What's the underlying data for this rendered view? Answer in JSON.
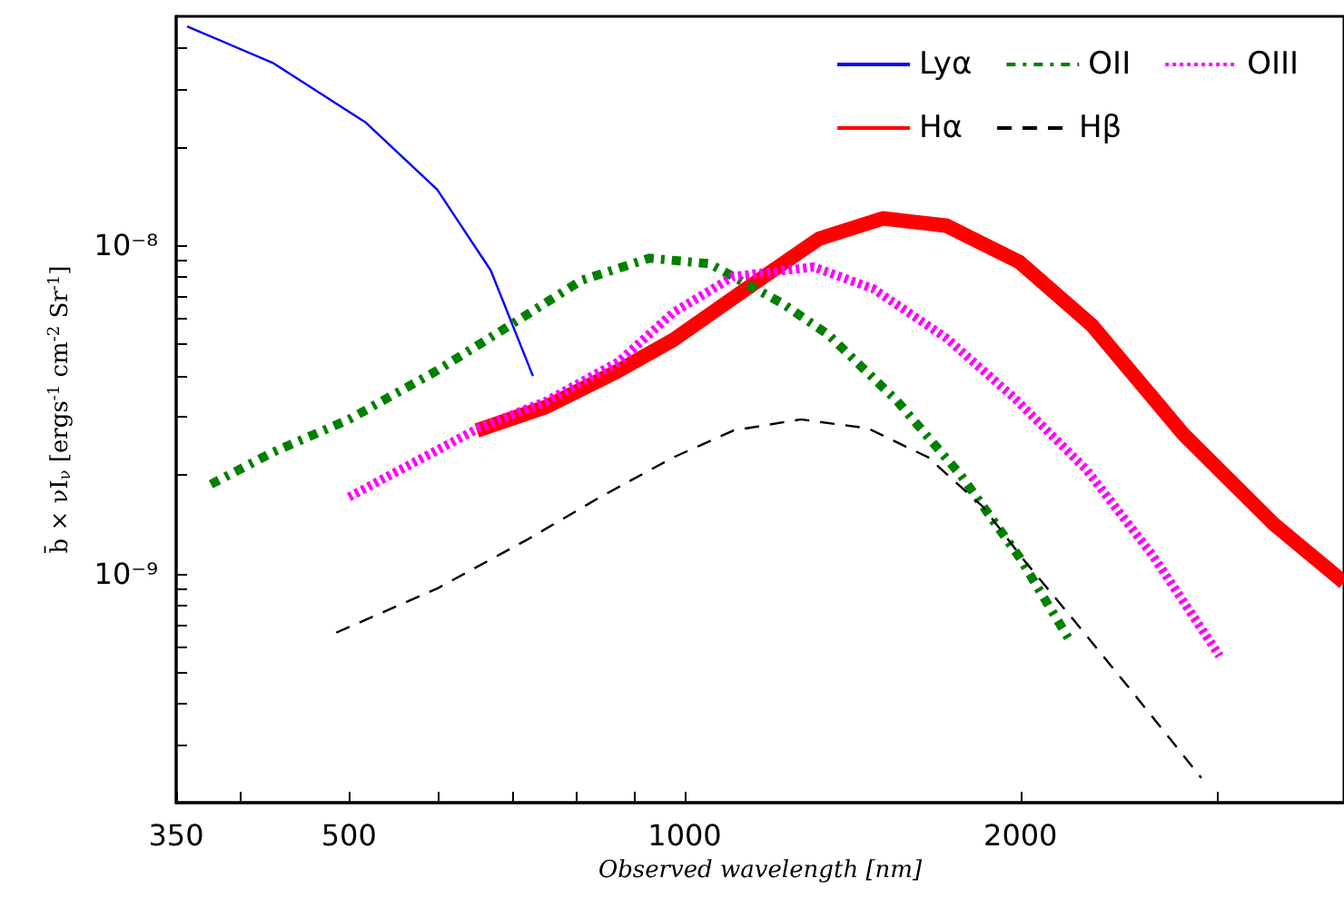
{
  "chart_data": {
    "type": "line",
    "xlabel": "Observed wavelength [nm]",
    "ylabel": "b̄ × νI$_{ν}$ [ergs$^{-1}$ cm$^{-2}$ Sr$^{-1}$]",
    "log": "xy",
    "xlim": [
      350,
      3900
    ],
    "ylim": [
      2e-10,
      5e-08
    ],
    "xticks": [
      350,
      {
        "value": 400,
        "label": null
      },
      500,
      {
        "value": 600,
        "label": null
      },
      {
        "value": 700,
        "label": null
      },
      {
        "value": 800,
        "label": null
      },
      {
        "value": 900,
        "label": null
      },
      1000,
      2000,
      {
        "value": 3000,
        "label": null
      }
    ],
    "yticks": [
      {
        "value": 3e-10,
        "label": null
      },
      {
        "value": 4e-10,
        "label": null
      },
      {
        "value": 5e-10,
        "label": null
      },
      {
        "value": 6e-10,
        "label": null
      },
      {
        "value": 7e-10,
        "label": null
      },
      {
        "value": 8e-10,
        "label": null
      },
      {
        "value": 9e-10,
        "label": null
      },
      {
        "value": 1e-09,
        "label": "10⁻⁹"
      },
      {
        "value": 2e-09,
        "label": null
      },
      {
        "value": 3e-09,
        "label": null
      },
      {
        "value": 4e-09,
        "label": null
      },
      {
        "value": 5e-09,
        "label": null
      },
      {
        "value": 6e-09,
        "label": null
      },
      {
        "value": 7e-09,
        "label": null
      },
      {
        "value": 8e-09,
        "label": null
      },
      {
        "value": 9e-09,
        "label": null
      },
      {
        "value": 1e-08,
        "label": "10⁻⁸"
      },
      {
        "value": 2e-08,
        "label": null
      },
      {
        "value": 3e-08,
        "label": null
      },
      {
        "value": 4e-08,
        "label": null
      }
    ],
    "grid": false,
    "legend": "top right",
    "marker": "none",
    "series": [
      {
        "name": "Lyα",
        "color": "#0000ff",
        "line_style": "solid",
        "x": [
          358,
          427,
          517,
          600,
          670,
          731
        ],
        "values": [
          4.66e-08,
          3.61e-08,
          2.38e-08,
          1.48e-08,
          8.4e-09,
          4e-09
        ]
      },
      {
        "name": "Hα",
        "color": "#ff0000",
        "line_style": "solid",
        "x": [
          651,
          751,
          873,
          977,
          1135,
          1320,
          1505,
          1716,
          1996,
          2319,
          2799,
          3377,
          3900
        ],
        "values": [
          2.73e-09,
          3.22e-09,
          4.16e-09,
          5.16e-09,
          7.37e-09,
          1.05e-08,
          1.21e-08,
          1.15e-08,
          8.9e-09,
          5.7e-09,
          2.66e-09,
          1.41e-09,
          9.4e-10
        ]
      },
      {
        "name": "OII",
        "color": "#008000",
        "line_style": "dashed",
        "x": [
          376,
          427,
          500,
          600,
          697,
          809,
          930,
          1053,
          1224,
          1344,
          1551,
          1769,
          1996,
          2217
        ],
        "values": [
          1.87e-09,
          2.34e-09,
          2.95e-09,
          4.16e-09,
          5.71e-09,
          7.85e-09,
          9.15e-09,
          8.8e-09,
          6.65e-09,
          5.36e-09,
          3.35e-09,
          1.99e-09,
          1.12e-09,
          6.2e-10
        ]
      },
      {
        "name": "Hβ",
        "color": "#000000",
        "line_style": "dashed",
        "x": [
          487,
          600,
          723,
          840,
          977,
          1106,
          1271,
          1460,
          1653,
          1850,
          2018,
          2233,
          2527,
          2905
        ],
        "values": [
          6.6e-10,
          9e-10,
          1.27e-09,
          1.71e-09,
          2.26e-09,
          2.73e-09,
          2.95e-09,
          2.77e-09,
          2.26e-09,
          1.6e-09,
          1.09e-09,
          7.2e-10,
          4.3e-10,
          2.38e-10
        ]
      },
      {
        "name": "OIII",
        "color": "#ff00ff",
        "line_style": "dotted",
        "x": [
          500,
          653,
          751,
          873,
          977,
          1106,
          1305,
          1477,
          1716,
          1973,
          2292,
          2625,
          3017
        ],
        "values": [
          1.71e-09,
          2.77e-09,
          3.35e-09,
          4.43e-09,
          6.25e-09,
          8.05e-09,
          8.6e-09,
          7.37e-09,
          5.22e-09,
          3.44e-09,
          2.07e-09,
          1.14e-09,
          5.6e-10
        ]
      }
    ]
  }
}
